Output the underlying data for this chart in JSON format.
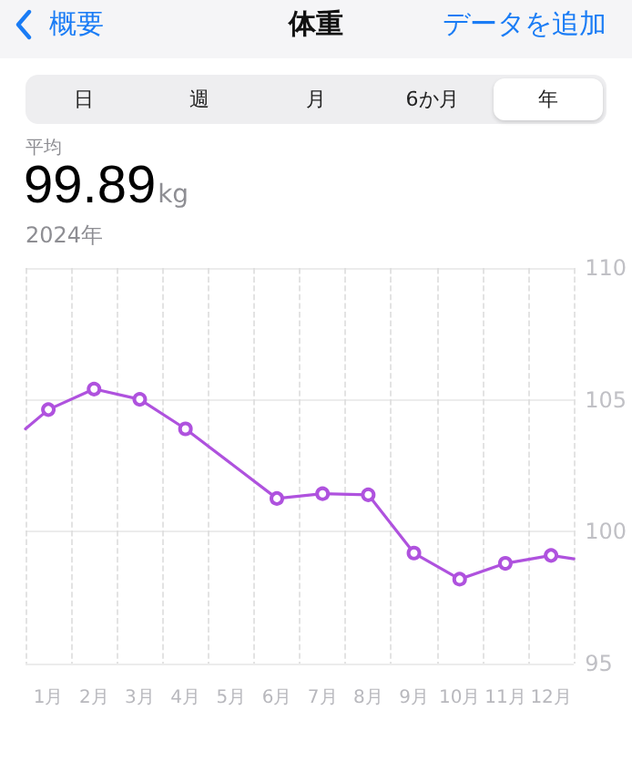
{
  "chart_data": {
    "type": "line",
    "title": "体重",
    "annotations": [
      "概要",
      "データを追加",
      "日",
      "週",
      "月",
      "6か月",
      "年",
      "平均",
      "99.89",
      "kg",
      "2024年"
    ],
    "x": [
      0,
      0.5,
      1.5,
      2.5,
      3.5,
      5.5,
      6.5,
      7.5,
      8.5,
      9.5,
      10.5,
      11.5,
      12
    ],
    "series": [
      {
        "color": "#af52de",
        "values": [
          103.9,
          104.63,
          105.41,
          105.02,
          103.9,
          101.26,
          101.44,
          101.4,
          99.19,
          98.2,
          98.8,
          99.1,
          98.97
        ]
      }
    ],
    "xlim": [
      0,
      12
    ],
    "xticks": [
      {
        "value": 0,
        "label": null
      },
      {
        "value": 1,
        "label": null
      },
      {
        "value": 2,
        "label": null
      },
      {
        "value": 3,
        "label": null
      },
      {
        "value": 4,
        "label": null
      },
      {
        "value": 5,
        "label": null
      },
      {
        "value": 6,
        "label": null
      },
      {
        "value": 7,
        "label": null
      },
      {
        "value": 8,
        "label": null
      },
      {
        "value": 9,
        "label": null
      },
      {
        "value": 10,
        "label": null
      },
      {
        "value": 11,
        "label": null
      },
      {
        "value": 12,
        "label": null
      },
      {
        "value": 0.5,
        "label": "1月"
      },
      {
        "value": 1.5,
        "label": "2月"
      },
      {
        "value": 2.5,
        "label": "3月"
      },
      {
        "value": 3.5,
        "label": "4月"
      },
      {
        "value": 4.5,
        "label": "5月"
      },
      {
        "value": 5.5,
        "label": "6月"
      },
      {
        "value": 6.5,
        "label": "7月"
      },
      {
        "value": 7.5,
        "label": "8月"
      },
      {
        "value": 8.5,
        "label": "9月"
      },
      {
        "value": 9.5,
        "label": "10月"
      },
      {
        "value": 10.5,
        "label": "11月"
      },
      {
        "value": 11.5,
        "label": "12月"
      }
    ],
    "ylim": [
      95,
      110
    ],
    "yticks": [
      95,
      100,
      105,
      110
    ],
    "grid": true,
    "marker": "circle",
    "line_style": "solid"
  }
}
